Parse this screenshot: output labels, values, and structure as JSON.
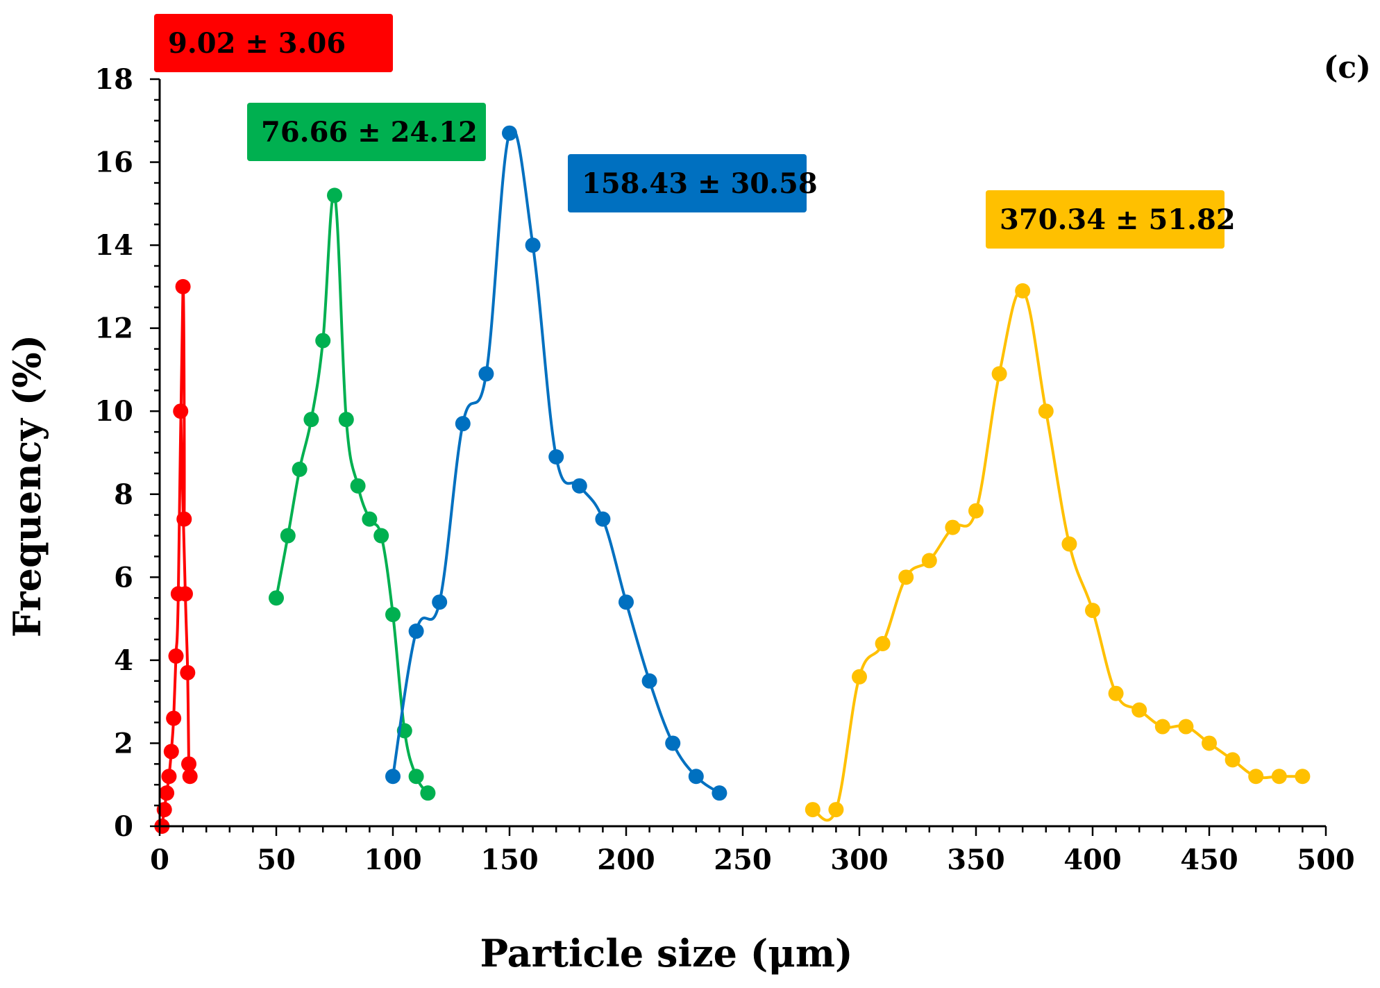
{
  "chart_data": {
    "type": "line",
    "title": "",
    "panel_label": "(c)",
    "xlabel": "Particle size (μm)",
    "ylabel": "Frequency (%)",
    "xlim": [
      0,
      500
    ],
    "ylim": [
      0,
      18
    ],
    "x_ticks": [
      "0",
      "50",
      "100",
      "150",
      "200",
      "250",
      "300",
      "350",
      "400",
      "450",
      "500"
    ],
    "y_ticks": [
      "0",
      "2",
      "4",
      "6",
      "8",
      "10",
      "12",
      "14",
      "16",
      "18"
    ],
    "grid": false,
    "series": [
      {
        "name": "red",
        "color": "#ff0000",
        "annotation": "9.02 ± 3.06",
        "x": [
          1,
          2,
          3,
          4,
          5,
          6,
          7,
          8,
          9,
          10,
          10.5,
          11,
          12,
          12.5,
          13
        ],
        "y": [
          0,
          0.4,
          0.8,
          1.2,
          1.8,
          2.6,
          4.1,
          5.6,
          10.0,
          13.0,
          7.4,
          5.6,
          3.7,
          1.5,
          1.2
        ],
        "plot_order": [
          0,
          1,
          2,
          3,
          4,
          5,
          6,
          7,
          9,
          10,
          8,
          11,
          12,
          13,
          14
        ]
      },
      {
        "name": "green",
        "color": "#00b050",
        "annotation": "76.66 ± 24.12",
        "x": [
          50,
          55,
          60,
          65,
          70,
          75,
          80,
          85,
          90,
          95,
          100,
          105,
          110,
          115
        ],
        "y": [
          5.5,
          7.0,
          8.6,
          9.8,
          11.7,
          15.2,
          9.8,
          8.2,
          7.4,
          7.0,
          5.1,
          2.3,
          1.2,
          0.8
        ]
      },
      {
        "name": "blue",
        "color": "#0070c0",
        "annotation": "158.43 ± 30.58",
        "x": [
          100,
          110,
          120,
          130,
          140,
          150,
          160,
          170,
          180,
          190,
          200,
          210,
          220,
          230,
          240
        ],
        "y": [
          1.2,
          4.7,
          5.4,
          9.7,
          10.9,
          16.7,
          14.0,
          8.9,
          8.2,
          7.4,
          5.4,
          3.5,
          2.0,
          1.2,
          0.8
        ]
      },
      {
        "name": "yellow",
        "color": "#ffc000",
        "annotation": "370.34 ± 51.82",
        "x": [
          280,
          290,
          300,
          310,
          320,
          330,
          340,
          350,
          360,
          370,
          380,
          390,
          400,
          410,
          420,
          430,
          440,
          450,
          460,
          470,
          480,
          490
        ],
        "y": [
          0.4,
          0.4,
          3.6,
          4.4,
          6.0,
          6.4,
          7.2,
          7.6,
          10.9,
          12.9,
          10.0,
          6.8,
          5.2,
          3.2,
          2.8,
          2.4,
          2.4,
          2.0,
          1.6,
          1.2,
          1.2,
          1.2
        ]
      }
    ]
  }
}
